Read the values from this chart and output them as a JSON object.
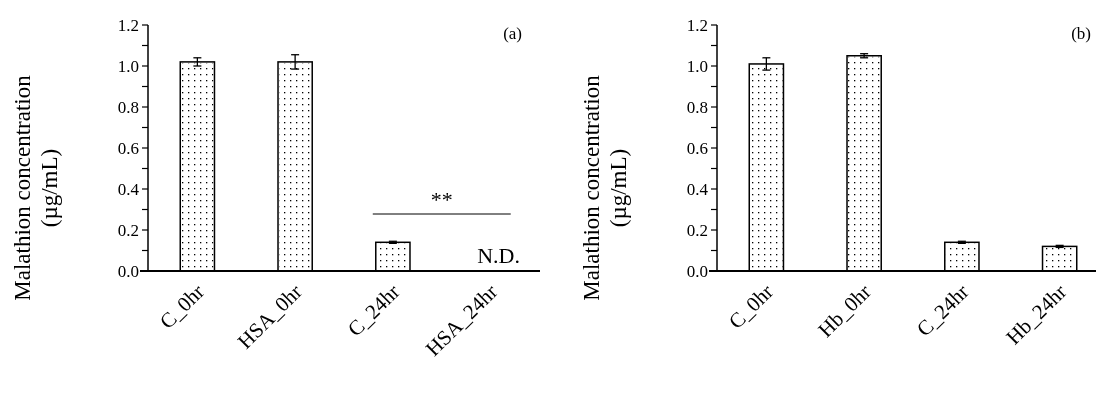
{
  "chart_data": [
    {
      "type": "bar",
      "ylabel": "Malathion concentration\n(µg/mL)",
      "categories": [
        "C_0hr",
        "HSA_0hr",
        "C_24hr",
        "HSA_24hr"
      ],
      "values": [
        1.02,
        1.02,
        0.14,
        null
      ],
      "errors": [
        0.02,
        0.035,
        0.005,
        null
      ],
      "color": "#ffffff",
      "ylim": [
        0,
        1.2
      ],
      "yticks": [
        {
          "value": 0,
          "label": "0.0"
        },
        {
          "value": 0.1,
          "label": null
        },
        {
          "value": 0.2,
          "label": "0.2"
        },
        {
          "value": 0.3,
          "label": null
        },
        {
          "value": 0.4,
          "label": "0.4"
        },
        {
          "value": 0.5,
          "label": null
        },
        {
          "value": 0.6,
          "label": "0.6"
        },
        {
          "value": 0.7,
          "label": null
        },
        {
          "value": 0.8,
          "label": "0.8"
        },
        {
          "value": 0.9,
          "label": null
        },
        {
          "value": 1,
          "label": "1.0"
        },
        {
          "value": 1.1,
          "label": null
        },
        {
          "value": 1.2,
          "label": "1.2"
        }
      ],
      "grid": false,
      "annotations": [
        "(a)",
        "**",
        "N.D."
      ]
    },
    {
      "type": "bar",
      "ylabel": "Malathion concentration\n(µg/mL)",
      "categories": [
        "C_0hr",
        "Hb_0hr",
        "C_24hr",
        "Hb_24hr"
      ],
      "values": [
        1.01,
        1.05,
        0.14,
        0.12
      ],
      "errors": [
        0.03,
        0.01,
        0.005,
        0.005
      ],
      "color": "#ffffff",
      "ylim": [
        0,
        1.2
      ],
      "yticks": [
        {
          "value": 0,
          "label": "0.0"
        },
        {
          "value": 0.1,
          "label": null
        },
        {
          "value": 0.2,
          "label": "0.2"
        },
        {
          "value": 0.3,
          "label": null
        },
        {
          "value": 0.4,
          "label": "0.4"
        },
        {
          "value": 0.5,
          "label": null
        },
        {
          "value": 0.6,
          "label": "0.6"
        },
        {
          "value": 0.7,
          "label": null
        },
        {
          "value": 0.8,
          "label": "0.8"
        },
        {
          "value": 0.9,
          "label": null
        },
        {
          "value": 1,
          "label": "1.0"
        },
        {
          "value": 1.1,
          "label": null
        },
        {
          "value": 1.2,
          "label": "1.2"
        }
      ],
      "grid": false,
      "annotations": [
        "(b)"
      ]
    }
  ]
}
